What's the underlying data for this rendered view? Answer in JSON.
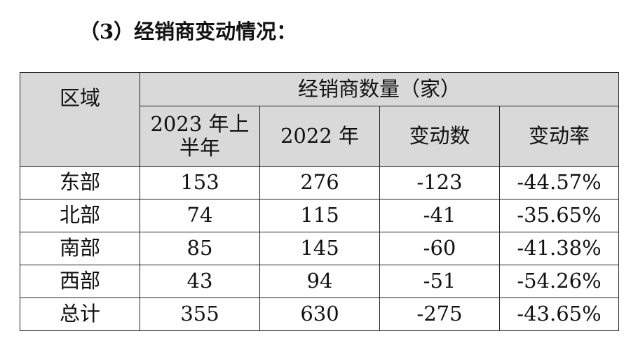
{
  "section_heading": "（3）经销商变动情况：",
  "table": {
    "region_header": "区域",
    "group_header": "经销商数量（家）",
    "columns": [
      "2023 年上半年",
      "2022 年",
      "变动数",
      "变动率"
    ],
    "rows": [
      {
        "region": "东部",
        "h1_2023": "153",
        "y2022": "276",
        "change": "-123",
        "rate": "-44.57%"
      },
      {
        "region": "北部",
        "h1_2023": "74",
        "y2022": "115",
        "change": "-41",
        "rate": "-35.65%"
      },
      {
        "region": "南部",
        "h1_2023": "85",
        "y2022": "145",
        "change": "-60",
        "rate": "-41.38%"
      },
      {
        "region": "西部",
        "h1_2023": "43",
        "y2022": "94",
        "change": "-51",
        "rate": "-54.26%"
      },
      {
        "region": "总计",
        "h1_2023": "355",
        "y2022": "630",
        "change": "-275",
        "rate": "-43.65%"
      }
    ]
  }
}
